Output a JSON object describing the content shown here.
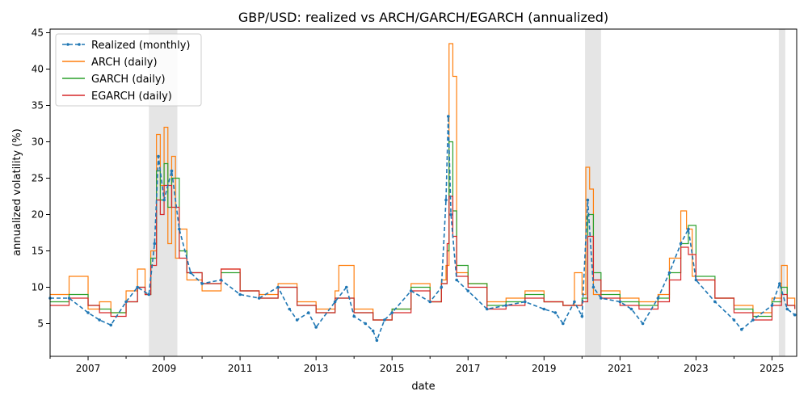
{
  "chart_data": {
    "type": "line",
    "title": "GBP/USD: realized vs ARCH/GARCH/EGARCH (annualized)",
    "xlabel": "date",
    "ylabel": "annualized volatility (%)",
    "xlim": [
      2006.0,
      2025.65
    ],
    "ylim": [
      0.5,
      45.5
    ],
    "x_ticks": [
      2007,
      2009,
      2011,
      2013,
      2015,
      2017,
      2019,
      2021,
      2023,
      2025
    ],
    "y_ticks": [
      5,
      10,
      15,
      20,
      25,
      30,
      35,
      40,
      45
    ],
    "grid": false,
    "legend_position": "top-left",
    "shaded_periods": [
      [
        2008.6,
        2009.35
      ],
      [
        2020.08,
        2020.5
      ],
      [
        2025.18,
        2025.35
      ]
    ],
    "series": [
      {
        "name": "Realized (monthly)",
        "color": "#1f77b4",
        "style": "dashed-dot-markers",
        "x": [
          2006.0,
          2006.5,
          2007.0,
          2007.3,
          2007.6,
          2008.0,
          2008.3,
          2008.6,
          2008.75,
          2008.85,
          2009.0,
          2009.2,
          2009.4,
          2009.7,
          2010.0,
          2010.5,
          2011.0,
          2011.5,
          2012.0,
          2012.3,
          2012.5,
          2012.8,
          2013.0,
          2013.5,
          2013.8,
          2014.0,
          2014.3,
          2014.5,
          2014.6,
          2014.8,
          2015.0,
          2015.5,
          2016.0,
          2016.3,
          2016.42,
          2016.48,
          2016.55,
          2016.7,
          2017.0,
          2017.5,
          2018.0,
          2018.5,
          2019.0,
          2019.3,
          2019.5,
          2019.8,
          2020.0,
          2020.15,
          2020.3,
          2020.5,
          2021.0,
          2021.3,
          2021.6,
          2022.0,
          2022.3,
          2022.6,
          2022.8,
          2023.0,
          2023.5,
          2024.0,
          2024.2,
          2024.5,
          2025.0,
          2025.2,
          2025.4,
          2025.6
        ],
        "values": [
          8.5,
          8.5,
          6.5,
          5.5,
          4.8,
          8.0,
          10.0,
          9.0,
          16.0,
          28.0,
          22.0,
          26.0,
          18.0,
          12.0,
          10.5,
          11.0,
          9.0,
          8.5,
          10.0,
          7.0,
          5.5,
          6.5,
          4.5,
          8.0,
          10.0,
          6.0,
          5.0,
          4.0,
          2.7,
          5.5,
          6.5,
          9.5,
          8.0,
          10.0,
          22.0,
          33.5,
          20.0,
          11.0,
          9.5,
          7.0,
          7.5,
          8.0,
          7.0,
          6.5,
          5.0,
          8.0,
          6.0,
          22.0,
          10.0,
          8.5,
          8.0,
          7.0,
          5.0,
          8.5,
          12.0,
          16.0,
          18.0,
          11.0,
          8.0,
          5.5,
          4.2,
          5.5,
          7.5,
          10.5,
          7.0,
          6.2
        ]
      },
      {
        "name": "ARCH (daily)",
        "color": "#ff7f0e",
        "x": [
          2006.0,
          2006.5,
          2007.0,
          2007.3,
          2007.6,
          2008.0,
          2008.3,
          2008.5,
          2008.65,
          2008.8,
          2008.9,
          2009.0,
          2009.1,
          2009.2,
          2009.3,
          2009.4,
          2009.6,
          2010.0,
          2010.5,
          2011.0,
          2011.5,
          2012.0,
          2012.5,
          2013.0,
          2013.5,
          2013.6,
          2014.0,
          2014.5,
          2015.0,
          2015.5,
          2016.0,
          2016.3,
          2016.42,
          2016.5,
          2016.6,
          2016.7,
          2017.0,
          2017.5,
          2018.0,
          2018.5,
          2019.0,
          2019.5,
          2019.8,
          2020.0,
          2020.1,
          2020.2,
          2020.3,
          2020.5,
          2021.0,
          2021.5,
          2022.0,
          2022.3,
          2022.6,
          2022.75,
          2022.9,
          2023.0,
          2023.5,
          2024.0,
          2024.5,
          2025.0,
          2025.25,
          2025.4,
          2025.6
        ],
        "values": [
          9.0,
          11.5,
          7.0,
          8.0,
          6.5,
          9.5,
          12.5,
          9.0,
          15.0,
          31.0,
          24.0,
          32.0,
          16.0,
          28.0,
          14.0,
          18.0,
          11.0,
          9.5,
          12.5,
          9.5,
          9.0,
          10.5,
          8.0,
          7.0,
          9.5,
          13.0,
          7.0,
          5.5,
          7.0,
          10.5,
          8.0,
          11.0,
          13.0,
          43.5,
          39.0,
          12.0,
          10.5,
          8.0,
          8.5,
          9.5,
          8.0,
          7.5,
          12.0,
          9.0,
          26.5,
          23.5,
          9.0,
          9.5,
          8.5,
          8.0,
          9.0,
          14.0,
          20.5,
          18.0,
          11.5,
          11.0,
          8.5,
          7.5,
          6.5,
          8.5,
          13.0,
          8.5,
          7.5
        ]
      },
      {
        "name": "GARCH (daily)",
        "color": "#2ca02c",
        "x": [
          2006.0,
          2006.5,
          2007.0,
          2007.3,
          2007.6,
          2008.0,
          2008.3,
          2008.5,
          2008.65,
          2008.8,
          2008.9,
          2009.0,
          2009.1,
          2009.2,
          2009.4,
          2009.6,
          2010.0,
          2010.5,
          2011.0,
          2011.5,
          2012.0,
          2012.5,
          2013.0,
          2013.5,
          2014.0,
          2014.5,
          2015.0,
          2015.5,
          2016.0,
          2016.3,
          2016.45,
          2016.5,
          2016.6,
          2016.7,
          2017.0,
          2017.5,
          2018.0,
          2018.5,
          2019.0,
          2019.5,
          2020.0,
          2020.15,
          2020.3,
          2020.5,
          2021.0,
          2021.5,
          2022.0,
          2022.3,
          2022.6,
          2022.8,
          2023.0,
          2023.5,
          2024.0,
          2024.5,
          2025.0,
          2025.25,
          2025.4,
          2025.6
        ],
        "values": [
          8.0,
          9.0,
          7.5,
          7.0,
          6.5,
          8.0,
          10.0,
          9.0,
          14.0,
          26.0,
          22.0,
          27.0,
          21.0,
          25.0,
          15.0,
          12.0,
          10.5,
          12.0,
          9.5,
          8.5,
          10.0,
          7.5,
          6.5,
          8.5,
          6.5,
          5.5,
          7.0,
          10.0,
          8.0,
          10.5,
          15.0,
          30.0,
          20.5,
          13.0,
          10.5,
          7.5,
          8.0,
          9.0,
          8.0,
          7.5,
          8.5,
          20.0,
          12.0,
          9.0,
          8.0,
          7.5,
          8.5,
          12.0,
          16.0,
          18.5,
          11.5,
          8.5,
          7.0,
          6.0,
          8.0,
          10.0,
          7.5,
          7.0
        ]
      },
      {
        "name": "EGARCH (daily)",
        "color": "#d62728",
        "x": [
          2006.0,
          2006.5,
          2007.0,
          2007.3,
          2007.6,
          2008.0,
          2008.3,
          2008.5,
          2008.65,
          2008.8,
          2008.9,
          2009.0,
          2009.2,
          2009.4,
          2009.6,
          2010.0,
          2010.5,
          2011.0,
          2011.5,
          2012.0,
          2012.5,
          2013.0,
          2013.5,
          2014.0,
          2014.5,
          2015.0,
          2015.5,
          2016.0,
          2016.3,
          2016.45,
          2016.5,
          2016.6,
          2016.7,
          2017.0,
          2017.5,
          2018.0,
          2018.5,
          2019.0,
          2019.5,
          2020.0,
          2020.15,
          2020.3,
          2020.5,
          2021.0,
          2021.5,
          2022.0,
          2022.3,
          2022.6,
          2022.8,
          2023.0,
          2023.5,
          2024.0,
          2024.5,
          2025.0,
          2025.25,
          2025.4,
          2025.6
        ],
        "values": [
          7.5,
          8.5,
          7.5,
          6.5,
          6.0,
          8.0,
          10.0,
          9.0,
          13.0,
          22.0,
          20.0,
          24.0,
          21.0,
          14.0,
          12.0,
          10.5,
          12.5,
          9.5,
          8.5,
          10.0,
          7.5,
          6.5,
          8.5,
          6.5,
          5.5,
          6.5,
          9.5,
          8.0,
          10.5,
          16.0,
          22.5,
          17.0,
          11.5,
          10.0,
          7.0,
          7.5,
          8.5,
          8.0,
          7.5,
          8.0,
          17.0,
          11.0,
          8.5,
          7.5,
          7.0,
          8.0,
          11.0,
          15.5,
          14.5,
          11.0,
          8.5,
          6.5,
          5.5,
          7.5,
          9.0,
          7.5,
          7.0
        ]
      }
    ]
  }
}
